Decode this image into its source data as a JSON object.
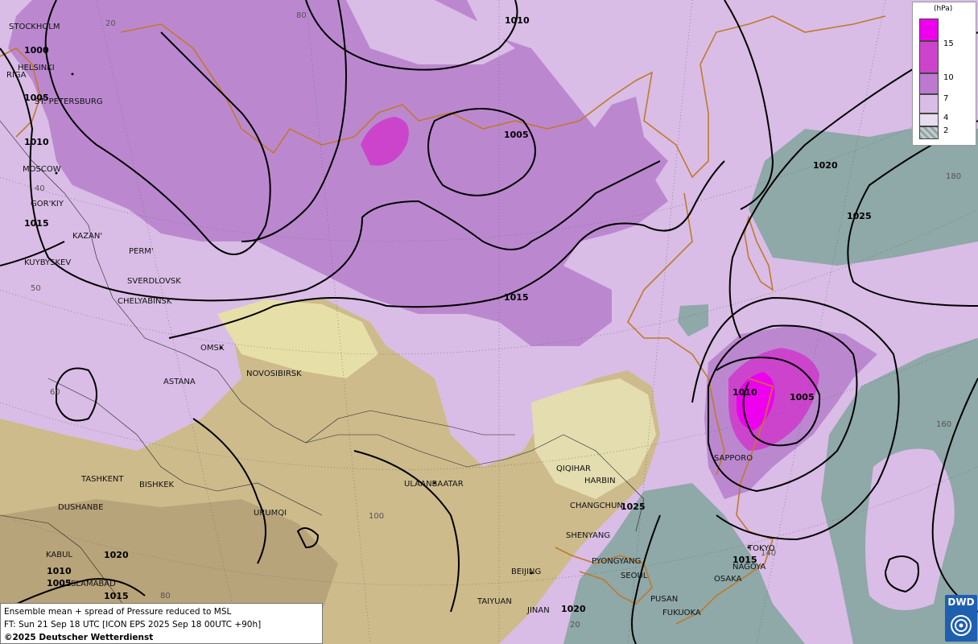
{
  "legend": {
    "unit": "(hPa)",
    "levels": [
      "15",
      "10",
      "7",
      "4",
      "2"
    ],
    "colors": [
      "#ee00ee",
      "#cc44cc",
      "#bb7ad0",
      "#d9bde6",
      "#e8dcf0",
      "#8fa8a8"
    ]
  },
  "caption": {
    "line1": "Ensemble mean + spread of Pressure reduced to MSL",
    "line2": "FT: Sun 21 Sep 18 UTC [ICON EPS 2025 Sep 18 00UTC +90h]",
    "copyright": "©2025 Deutscher Wetterdienst"
  },
  "logo": {
    "text": "DWD"
  },
  "cities": {
    "stockholm": "STOCKHOLM",
    "helsinki": "HELSINKI",
    "riga": "RIGA",
    "st_petersburg": "ST. PETERSBURG",
    "moscow": "MOSCOW",
    "gorkiy": "GOR'KIY",
    "kazan": "KAZAN'",
    "kuybyshev": "KUYBYSKEV",
    "perm": "PERM'",
    "sverdlovsk": "SVERDLOVSK",
    "chelyabinsk": "CHELYABINSK",
    "omsk": "OMSK",
    "astana": "ASTANA",
    "novosibirsk": "NOVOSIBIRSK",
    "tashkent": "TASHKENT",
    "bishkek": "BISHKEK",
    "dushanbe": "DUSHANBE",
    "urumqi": "URUMQI",
    "kabul": "KABUL",
    "islamabad": "ISLAMABAD",
    "ulaanbaatar": "ULAANBAATAR",
    "qiqihar": "QIQIHAR",
    "harbin": "HARBIN",
    "changchun": "CHANGCHUN",
    "shenyang": "SHENYANG",
    "pyongyang": "PYONGYANG",
    "seoul": "SEOUL",
    "pusan": "PUSAN",
    "fukuoka": "FUKUOKA",
    "osaka": "OSAKA",
    "nagoya": "NAGOYA",
    "tokyo": "TOKYO",
    "sapporo": "SAPPORO",
    "beijing": "BEIJING",
    "taiyuan": "TAIYUAN",
    "jinan": "JINAN"
  },
  "isobar_labels": {
    "l1010_north": "1010",
    "l1000_west": "1000",
    "l1005_stp": "1005",
    "l1010_west": "1010",
    "l1015_west": "1015",
    "l1005_center": "1005",
    "l1015_center": "1015",
    "l1020_pacific": "1020",
    "l1025_pacific": "1025",
    "l1010_japan": "1010",
    "l1005_japan": "1005",
    "l1025_china": "1025",
    "l1015_japan": "1015",
    "l1020_china": "1020",
    "l1020_sw": "1020",
    "l1010_sw": "1010",
    "l1005_sw": "1005",
    "l1015_sw": "1015"
  },
  "grid_labels": {
    "g20_top": "20",
    "g80_top": "80",
    "g40_left": "40",
    "g50_left": "50",
    "g60_left": "60",
    "g100_mid": "100",
    "g80_bottom": "80",
    "g20_bottom": "20",
    "g180_right": "180",
    "g160_right": "160",
    "g140_bottom": "140"
  }
}
